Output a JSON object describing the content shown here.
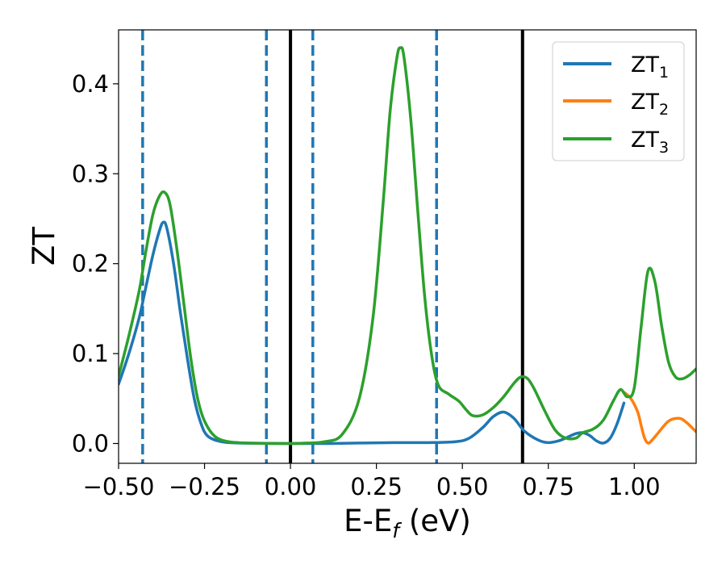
{
  "chart_data": {
    "type": "line",
    "xlabel": {
      "main": "E-E",
      "sub": "f",
      "suffix": " (eV)"
    },
    "ylabel": "ZT",
    "xlim": [
      -0.5,
      1.18
    ],
    "ylim": [
      -0.022,
      0.46
    ],
    "xticks": [
      {
        "value": -0.5,
        "label": "−0.50"
      },
      {
        "value": -0.25,
        "label": "−0.25"
      },
      {
        "value": 0.0,
        "label": "0.00"
      },
      {
        "value": 0.25,
        "label": "0.25"
      },
      {
        "value": 0.5,
        "label": "0.50"
      },
      {
        "value": 0.75,
        "label": "0.75"
      },
      {
        "value": 1.0,
        "label": "1.00"
      }
    ],
    "yticks": [
      {
        "value": 0.0,
        "label": "0.0"
      },
      {
        "value": 0.1,
        "label": "0.1"
      },
      {
        "value": 0.2,
        "label": "0.2"
      },
      {
        "value": 0.3,
        "label": "0.3"
      },
      {
        "value": 0.4,
        "label": "0.4"
      }
    ],
    "grid": false,
    "legend_position": "top-right",
    "series": [
      {
        "name": "ZT",
        "name_sub": "1",
        "color": "#1f77b4",
        "x": [
          -0.5,
          -0.47,
          -0.44,
          -0.42,
          -0.4,
          -0.38,
          -0.37,
          -0.36,
          -0.34,
          -0.32,
          -0.3,
          -0.28,
          -0.26,
          -0.24,
          -0.2,
          -0.15,
          -0.1,
          0.0,
          0.1,
          0.2,
          0.3,
          0.4,
          0.48,
          0.52,
          0.56,
          0.59,
          0.62,
          0.65,
          0.68,
          0.72,
          0.75,
          0.78,
          0.8,
          0.83,
          0.85,
          0.87,
          0.89,
          0.91,
          0.93,
          0.95,
          0.97
        ],
        "y": [
          0.066,
          0.1,
          0.14,
          0.175,
          0.21,
          0.238,
          0.246,
          0.24,
          0.2,
          0.145,
          0.095,
          0.05,
          0.022,
          0.008,
          0.002,
          0.0005,
          0.0003,
          0.0,
          0.0,
          0.0005,
          0.001,
          0.001,
          0.002,
          0.006,
          0.018,
          0.03,
          0.035,
          0.028,
          0.014,
          0.004,
          0.001,
          0.003,
          0.006,
          0.011,
          0.012,
          0.009,
          0.003,
          0.0005,
          0.006,
          0.022,
          0.045
        ]
      },
      {
        "name": "ZT",
        "name_sub": "2",
        "color": "#ff7f0e",
        "x": [
          0.97,
          0.99,
          1.01,
          1.02,
          1.03,
          1.04,
          1.05,
          1.07,
          1.1,
          1.13,
          1.15,
          1.18
        ],
        "y": [
          0.057,
          0.05,
          0.035,
          0.02,
          0.006,
          0.0005,
          0.003,
          0.012,
          0.025,
          0.028,
          0.024,
          0.013
        ]
      },
      {
        "name": "ZT",
        "name_sub": "3",
        "color": "#2ca02c",
        "x": [
          -0.5,
          -0.47,
          -0.44,
          -0.42,
          -0.4,
          -0.38,
          -0.365,
          -0.35,
          -0.33,
          -0.31,
          -0.29,
          -0.27,
          -0.25,
          -0.22,
          -0.18,
          -0.12,
          -0.05,
          0.0,
          0.05,
          0.1,
          0.15,
          0.2,
          0.24,
          0.27,
          0.29,
          0.31,
          0.32,
          0.33,
          0.35,
          0.37,
          0.39,
          0.41,
          0.43,
          0.46,
          0.49,
          0.51,
          0.53,
          0.56,
          0.59,
          0.62,
          0.65,
          0.67,
          0.69,
          0.71,
          0.74,
          0.77,
          0.8,
          0.83,
          0.85,
          0.88,
          0.91,
          0.94,
          0.96,
          0.98,
          1.0,
          1.02,
          1.04,
          1.06,
          1.08,
          1.1,
          1.12,
          1.14,
          1.16,
          1.18
        ],
        "y": [
          0.075,
          0.12,
          0.17,
          0.215,
          0.255,
          0.276,
          0.279,
          0.265,
          0.215,
          0.155,
          0.095,
          0.05,
          0.025,
          0.008,
          0.002,
          0.0005,
          0.0,
          0.0,
          0.0005,
          0.002,
          0.01,
          0.05,
          0.14,
          0.27,
          0.37,
          0.43,
          0.44,
          0.43,
          0.36,
          0.26,
          0.165,
          0.1,
          0.065,
          0.055,
          0.047,
          0.038,
          0.031,
          0.032,
          0.04,
          0.052,
          0.067,
          0.074,
          0.072,
          0.06,
          0.036,
          0.015,
          0.006,
          0.006,
          0.012,
          0.016,
          0.026,
          0.048,
          0.06,
          0.052,
          0.062,
          0.13,
          0.192,
          0.18,
          0.13,
          0.09,
          0.074,
          0.072,
          0.076,
          0.083
        ]
      }
    ],
    "vertical_lines": [
      {
        "x": -0.43,
        "style": "dashed",
        "color": "#1f77b4"
      },
      {
        "x": -0.07,
        "style": "dashed",
        "color": "#1f77b4"
      },
      {
        "x": 0.0,
        "style": "solid",
        "color": "#000000"
      },
      {
        "x": 0.065,
        "style": "dashed",
        "color": "#1f77b4"
      },
      {
        "x": 0.425,
        "style": "dashed",
        "color": "#1f77b4"
      },
      {
        "x": 0.675,
        "style": "solid",
        "color": "#000000"
      }
    ]
  }
}
